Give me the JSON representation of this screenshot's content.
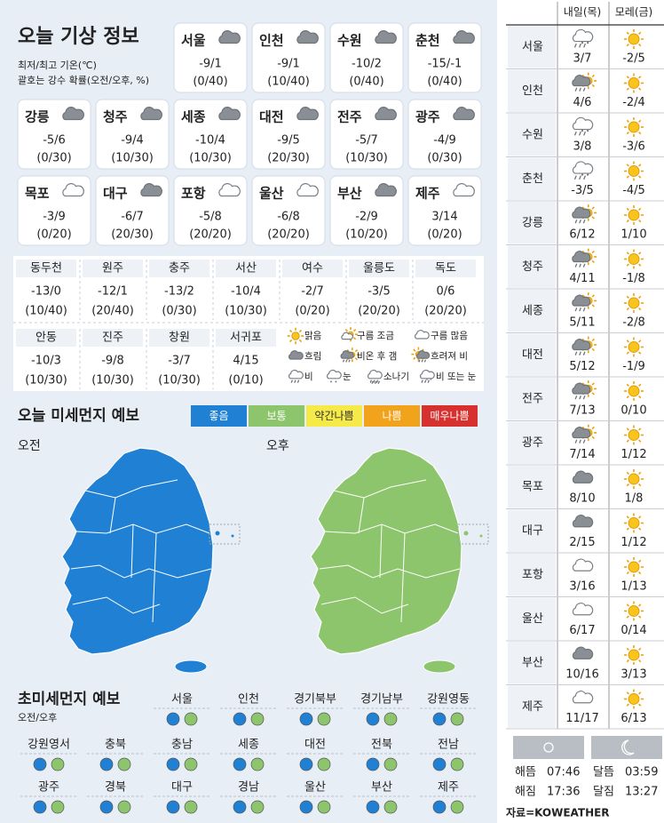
{
  "title": "오늘 기상 정보",
  "notes": [
    "최저/최고 기온(℃)",
    "괄호는 강수 확률(오전/오후, %)"
  ],
  "cities": [
    {
      "name": "서울",
      "temp": "-9/1",
      "rain": "(0/40)",
      "icon": "흐림"
    },
    {
      "name": "인천",
      "temp": "-9/1",
      "rain": "(10/40)",
      "icon": "흐림"
    },
    {
      "name": "수원",
      "temp": "-10/2",
      "rain": "(0/40)",
      "icon": "흐림"
    },
    {
      "name": "춘천",
      "temp": "-15/-1",
      "rain": "(0/40)",
      "icon": "흐림"
    },
    {
      "name": "강릉",
      "temp": "-5/6",
      "rain": "(0/30)",
      "icon": "흐림"
    },
    {
      "name": "청주",
      "temp": "-9/4",
      "rain": "(10/30)",
      "icon": "흐림"
    },
    {
      "name": "세종",
      "temp": "-10/4",
      "rain": "(10/30)",
      "icon": "흐림"
    },
    {
      "name": "대전",
      "temp": "-9/5",
      "rain": "(20/30)",
      "icon": "흐림"
    },
    {
      "name": "전주",
      "temp": "-5/7",
      "rain": "(10/30)",
      "icon": "흐림"
    },
    {
      "name": "광주",
      "temp": "-4/9",
      "rain": "(0/30)",
      "icon": "흐림"
    },
    {
      "name": "목포",
      "temp": "-3/9",
      "rain": "(0/20)",
      "icon": "구름 많음"
    },
    {
      "name": "대구",
      "temp": "-6/7",
      "rain": "(20/30)",
      "icon": "흐림"
    },
    {
      "name": "포항",
      "temp": "-5/8",
      "rain": "(20/20)",
      "icon": "구름 많음"
    },
    {
      "name": "울산",
      "temp": "-6/8",
      "rain": "(20/20)",
      "icon": "구름 많음"
    },
    {
      "name": "부산",
      "temp": "-2/9",
      "rain": "(10/20)",
      "icon": "흐림"
    },
    {
      "name": "제주",
      "temp": "3/14",
      "rain": "(0/20)",
      "icon": "구름 많음"
    }
  ],
  "more_cities": [
    {
      "name": "동두천",
      "temp": "-13/0",
      "rain": "(10/40)"
    },
    {
      "name": "원주",
      "temp": "-12/1",
      "rain": "(20/40)"
    },
    {
      "name": "충주",
      "temp": "-13/2",
      "rain": "(0/30)"
    },
    {
      "name": "서산",
      "temp": "-10/4",
      "rain": "(10/30)"
    },
    {
      "name": "여수",
      "temp": "-2/7",
      "rain": "(0/20)"
    },
    {
      "name": "울릉도",
      "temp": "-3/5",
      "rain": "(20/20)"
    },
    {
      "name": "독도",
      "temp": "0/6",
      "rain": "(20/20)"
    },
    {
      "name": "안동",
      "temp": "-10/3",
      "rain": "(10/30)"
    },
    {
      "name": "진주",
      "temp": "-9/8",
      "rain": "(10/30)"
    },
    {
      "name": "창원",
      "temp": "-3/7",
      "rain": "(10/30)"
    },
    {
      "name": "서귀포",
      "temp": "4/15",
      "rain": "(0/10)"
    }
  ],
  "legend": [
    "맑음",
    "구름 조금",
    "구름 많음",
    "흐림",
    "비온 후 갬",
    "흐려져 비",
    "비",
    "눈",
    "소나기",
    "비 또는 눈"
  ],
  "fine_dust": {
    "title": "오늘 미세먼지 예보",
    "scale": [
      {
        "label": "좋음",
        "color": "#1f80d4"
      },
      {
        "label": "보통",
        "color": "#8dc56c"
      },
      {
        "label": "약간나쁨",
        "color": "#f6ea48"
      },
      {
        "label": "나쁨",
        "color": "#f2a31c"
      },
      {
        "label": "매우나쁨",
        "color": "#d7312f"
      }
    ],
    "am": {
      "label": "오전",
      "grade": "좋음"
    },
    "pm": {
      "label": "오후",
      "grade": "보통"
    }
  },
  "ultrafine": {
    "title": "초미세먼지 예보",
    "note": "오전/오후",
    "regions": [
      {
        "name": "서울",
        "am": "좋음",
        "pm": "보통"
      },
      {
        "name": "인천",
        "am": "좋음",
        "pm": "보통"
      },
      {
        "name": "경기북부",
        "am": "좋음",
        "pm": "보통"
      },
      {
        "name": "경기남부",
        "am": "좋음",
        "pm": "보통"
      },
      {
        "name": "강원영동",
        "am": "좋음",
        "pm": "보통"
      },
      {
        "name": "강원영서",
        "am": "좋음",
        "pm": "보통"
      },
      {
        "name": "충북",
        "am": "좋음",
        "pm": "보통"
      },
      {
        "name": "충남",
        "am": "좋음",
        "pm": "보통"
      },
      {
        "name": "세종",
        "am": "좋음",
        "pm": "보통"
      },
      {
        "name": "대전",
        "am": "좋음",
        "pm": "보통"
      },
      {
        "name": "전북",
        "am": "좋음",
        "pm": "보통"
      },
      {
        "name": "전남",
        "am": "좋음",
        "pm": "보통"
      },
      {
        "name": "광주",
        "am": "좋음",
        "pm": "보통"
      },
      {
        "name": "경북",
        "am": "좋음",
        "pm": "보통"
      },
      {
        "name": "대구",
        "am": "좋음",
        "pm": "보통"
      },
      {
        "name": "경남",
        "am": "좋음",
        "pm": "보통"
      },
      {
        "name": "울산",
        "am": "좋음",
        "pm": "보통"
      },
      {
        "name": "부산",
        "am": "좋음",
        "pm": "보통"
      },
      {
        "name": "제주",
        "am": "좋음",
        "pm": "보통"
      }
    ]
  },
  "forecast": {
    "headers": [
      "내일(목)",
      "모레(금)"
    ],
    "rows": [
      {
        "name": "서울",
        "day1": {
          "temp": "3/7",
          "icon": "비 또는 눈"
        },
        "day2": {
          "temp": "-2/5",
          "icon": "맑음"
        }
      },
      {
        "name": "인천",
        "day1": {
          "temp": "4/6",
          "icon": "비온 후 갬"
        },
        "day2": {
          "temp": "-2/4",
          "icon": "맑음"
        }
      },
      {
        "name": "수원",
        "day1": {
          "temp": "3/8",
          "icon": "비 또는 눈"
        },
        "day2": {
          "temp": "-3/6",
          "icon": "맑음"
        }
      },
      {
        "name": "춘천",
        "day1": {
          "temp": "-3/5",
          "icon": "비 또는 눈"
        },
        "day2": {
          "temp": "-4/5",
          "icon": "맑음"
        }
      },
      {
        "name": "강릉",
        "day1": {
          "temp": "6/12",
          "icon": "비온 후 갬"
        },
        "day2": {
          "temp": "1/10",
          "icon": "맑음"
        }
      },
      {
        "name": "청주",
        "day1": {
          "temp": "4/11",
          "icon": "비온 후 갬"
        },
        "day2": {
          "temp": "-1/8",
          "icon": "맑음"
        }
      },
      {
        "name": "세종",
        "day1": {
          "temp": "5/11",
          "icon": "비온 후 갬"
        },
        "day2": {
          "temp": "-2/8",
          "icon": "맑음"
        }
      },
      {
        "name": "대전",
        "day1": {
          "temp": "5/12",
          "icon": "비온 후 갬"
        },
        "day2": {
          "temp": "-1/9",
          "icon": "맑음"
        }
      },
      {
        "name": "전주",
        "day1": {
          "temp": "7/13",
          "icon": "비온 후 갬"
        },
        "day2": {
          "temp": "0/10",
          "icon": "맑음"
        }
      },
      {
        "name": "광주",
        "day1": {
          "temp": "7/14",
          "icon": "비온 후 갬"
        },
        "day2": {
          "temp": "1/12",
          "icon": "맑음"
        }
      },
      {
        "name": "목포",
        "day1": {
          "temp": "8/10",
          "icon": "흐림"
        },
        "day2": {
          "temp": "1/8",
          "icon": "맑음"
        }
      },
      {
        "name": "대구",
        "day1": {
          "temp": "2/15",
          "icon": "흐림"
        },
        "day2": {
          "temp": "1/12",
          "icon": "맑음"
        }
      },
      {
        "name": "포항",
        "day1": {
          "temp": "3/16",
          "icon": "구름 많음"
        },
        "day2": {
          "temp": "1/13",
          "icon": "맑음"
        }
      },
      {
        "name": "울산",
        "day1": {
          "temp": "6/17",
          "icon": "구름 많음"
        },
        "day2": {
          "temp": "0/14",
          "icon": "맑음"
        }
      },
      {
        "name": "부산",
        "day1": {
          "temp": "10/16",
          "icon": "흐림"
        },
        "day2": {
          "temp": "3/13",
          "icon": "맑음"
        }
      },
      {
        "name": "제주",
        "day1": {
          "temp": "11/17",
          "icon": "구름 많음"
        },
        "day2": {
          "temp": "6/13",
          "icon": "맑음"
        }
      }
    ]
  },
  "sun_moon": [
    {
      "label": "해뜸",
      "time": "07:46"
    },
    {
      "label": "해짐",
      "time": "17:36"
    },
    {
      "label": "달뜸",
      "time": "03:59"
    },
    {
      "label": "달짐",
      "time": "13:27"
    }
  ],
  "source": "자료=KOWEATHER"
}
